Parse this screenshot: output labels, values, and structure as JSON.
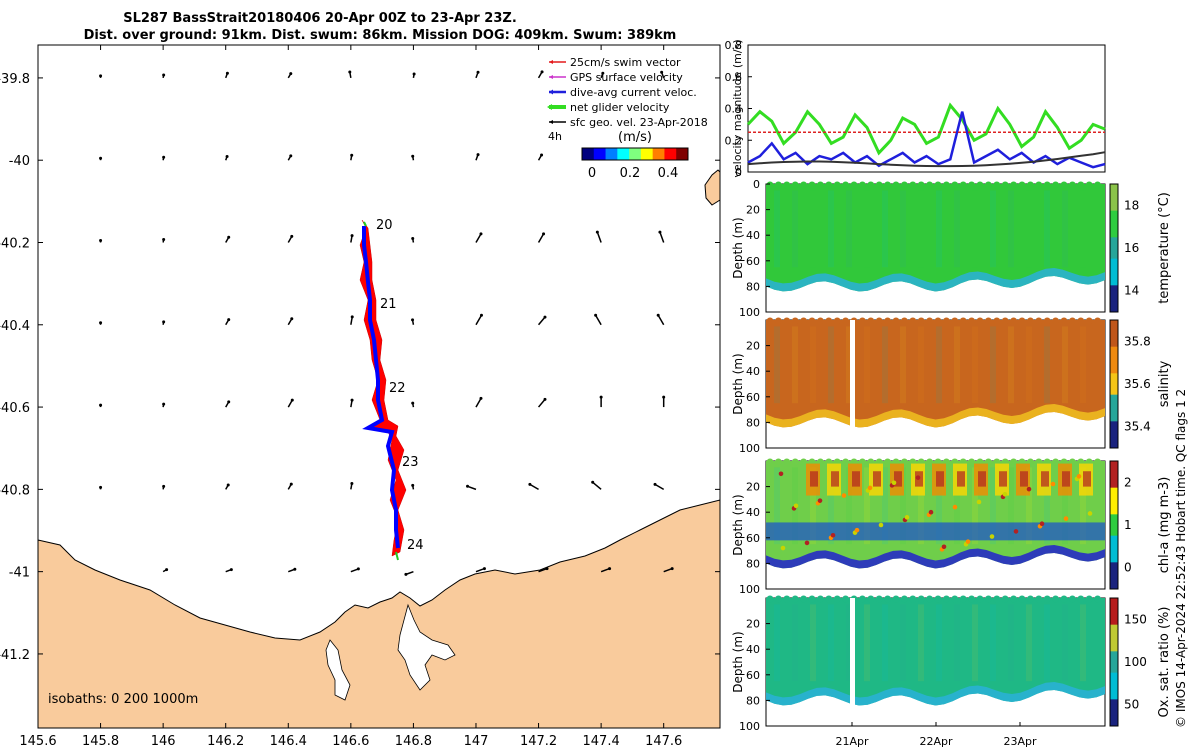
{
  "title_line1": "SL287 BassStrait20180406 20-Apr 00Z to 23-Apr 23Z.",
  "title_line2": "Dist. over ground: 91km. Dist. swum: 86km. Mission DOG: 409km. Swum: 389km",
  "map": {
    "x_ticks": [
      "145.6",
      "145.8",
      "146",
      "146.2",
      "146.4",
      "146.6",
      "146.8",
      "147",
      "147.2",
      "147.4",
      "147.6"
    ],
    "y_ticks": [
      "-39.8",
      "-40",
      "-40.2",
      "-40.4",
      "-40.6",
      "-40.8",
      "-41",
      "-41.2"
    ],
    "xlim": [
      145.6,
      147.78
    ],
    "ylim": [
      -41.38,
      -39.72
    ],
    "legend": [
      {
        "label": "25cm/s swim vector",
        "color": "#e41a1c"
      },
      {
        "label": "GPS surface velocity",
        "color": "#cc33cc"
      },
      {
        "label": "dive-avg current veloc.",
        "color": "#1f1fdc"
      },
      {
        "label": "net glider velocity",
        "color": "#33dd22"
      },
      {
        "label": "sfc geo. vel. 23-Apr-2018",
        "color": "#000000"
      }
    ],
    "legend_extra": "4h",
    "colorbar_label": "(m/s)",
    "colorbar_ticks": [
      "0",
      "0.2",
      "0.4"
    ],
    "day_labels": [
      "20",
      "21",
      "22",
      "23",
      "24"
    ],
    "isobaths_label": "isobaths: 0   200  1000m",
    "colors": {
      "land": "#f9cb9c",
      "track_red": "#ff0000",
      "track_blue": "#0000ff",
      "track_green": "#22cc22"
    }
  },
  "chart_data": [
    {
      "type": "line",
      "ylabel": "velocity magnitude (m/s)",
      "ylim": [
        0,
        0.8
      ],
      "yticks": [
        "0",
        "0.2",
        "0.4",
        "0.6",
        "0.8"
      ],
      "series": [
        {
          "color": "#33dd22",
          "values": [
            0.3,
            0.38,
            0.32,
            0.18,
            0.25,
            0.38,
            0.3,
            0.18,
            0.22,
            0.36,
            0.28,
            0.12,
            0.2,
            0.34,
            0.3,
            0.18,
            0.22,
            0.42,
            0.33,
            0.2,
            0.24,
            0.4,
            0.3,
            0.16,
            0.22,
            0.38,
            0.28,
            0.15,
            0.2,
            0.3,
            0.27
          ]
        },
        {
          "color": "#1f1fdc",
          "values": [
            0.06,
            0.1,
            0.18,
            0.08,
            0.12,
            0.05,
            0.1,
            0.08,
            0.12,
            0.06,
            0.1,
            0.04,
            0.08,
            0.12,
            0.06,
            0.1,
            0.05,
            0.08,
            0.38,
            0.06,
            0.1,
            0.14,
            0.08,
            0.12,
            0.06,
            0.1,
            0.05,
            0.09,
            0.06,
            0.03,
            0.05
          ]
        },
        {
          "color": "#333333",
          "values": [
            0.05,
            0.055,
            0.06,
            0.063,
            0.065,
            0.066,
            0.066,
            0.065,
            0.062,
            0.058,
            0.054,
            0.05,
            0.046,
            0.043,
            0.04,
            0.038,
            0.037,
            0.037,
            0.038,
            0.04,
            0.043,
            0.047,
            0.052,
            0.058,
            0.065,
            0.073,
            0.082,
            0.092,
            0.102,
            0.112,
            0.125
          ]
        },
        {
          "color": "#dd2222",
          "values": [
            0.25,
            0.25
          ]
        }
      ]
    },
    {
      "type": "heatmap",
      "ylabel": "Depth (m)",
      "colorbar_label": "temperature (°C)",
      "colorbar_ticks": [
        "14",
        "16",
        "18"
      ],
      "ylim": [
        100,
        0
      ],
      "yticks": [
        "0",
        "20",
        "40",
        "60",
        "80",
        "100"
      ]
    },
    {
      "type": "heatmap",
      "ylabel": "Depth (m)",
      "colorbar_label": "salinity",
      "colorbar_ticks": [
        "35.4",
        "35.6",
        "35.8"
      ],
      "ylim": [
        100,
        0
      ],
      "yticks": [
        "20",
        "40",
        "60",
        "80",
        "100"
      ]
    },
    {
      "type": "heatmap",
      "ylabel": "Depth (m)",
      "colorbar_label": "chl-a (mg m-3)",
      "colorbar_ticks": [
        "0",
        "1",
        "2"
      ],
      "ylim": [
        100,
        0
      ],
      "yticks": [
        "20",
        "40",
        "60",
        "80",
        "100"
      ]
    },
    {
      "type": "heatmap",
      "ylabel": "Depth (m)",
      "colorbar_label": "Ox. sat. ratio (%)",
      "colorbar_ticks": [
        "50",
        "100",
        "150"
      ],
      "ylim": [
        100,
        0
      ],
      "yticks": [
        "20",
        "40",
        "60",
        "80",
        "100"
      ],
      "x_ticks": [
        "21Apr",
        "22Apr",
        "23Apr"
      ]
    }
  ],
  "side_note": "© IMOS 14-Apr-2024 22:52:43 Hobart time. QC flags 1  2"
}
